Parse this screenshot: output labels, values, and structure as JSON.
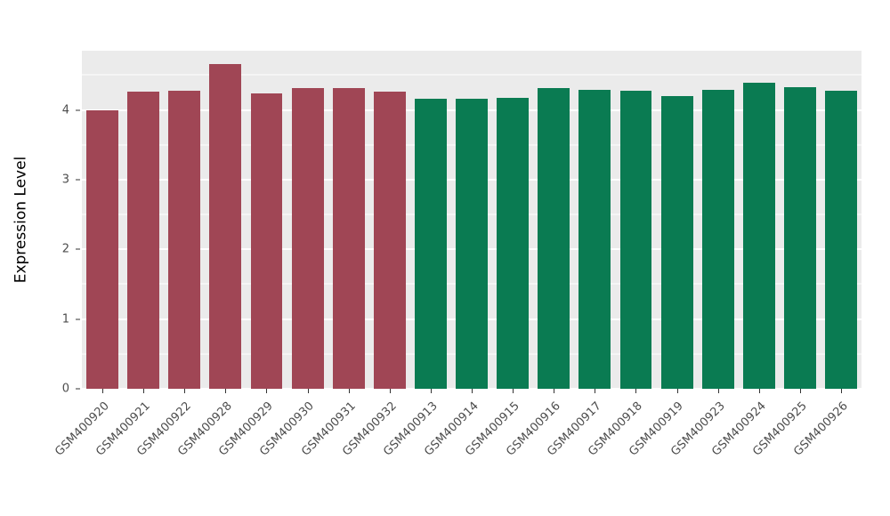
{
  "chart_data": {
    "type": "bar",
    "title": "",
    "xlabel": "",
    "ylabel": "Expression Level",
    "ylim": [
      0,
      4.85
    ],
    "yticks": [
      0,
      1,
      2,
      3,
      4
    ],
    "yticks_minor": [
      0.5,
      1.5,
      2.5,
      3.5,
      4.5
    ],
    "grid": true,
    "legend": "none",
    "panel_bg": "#ebebeb",
    "grid_color": "#ffffff",
    "groups": [
      {
        "name": "group-red",
        "color": "#a04655",
        "count": 8
      },
      {
        "name": "group-green",
        "color": "#0a7b52",
        "count": 11
      }
    ],
    "categories": [
      "GSM400920",
      "GSM400921",
      "GSM400922",
      "GSM400928",
      "GSM400929",
      "GSM400930",
      "GSM400931",
      "GSM400932",
      "GSM400913",
      "GSM400914",
      "GSM400915",
      "GSM400916",
      "GSM400917",
      "GSM400918",
      "GSM400919",
      "GSM400923",
      "GSM400924",
      "GSM400925",
      "GSM400926"
    ],
    "values": [
      4.0,
      4.26,
      4.27,
      4.66,
      4.24,
      4.31,
      4.32,
      4.26,
      4.16,
      4.16,
      4.17,
      4.31,
      4.29,
      4.28,
      4.2,
      4.29,
      4.39,
      4.33,
      4.28
    ],
    "bar_colors": [
      "#a04655",
      "#a04655",
      "#a04655",
      "#a04655",
      "#a04655",
      "#a04655",
      "#a04655",
      "#a04655",
      "#0a7b52",
      "#0a7b52",
      "#0a7b52",
      "#0a7b52",
      "#0a7b52",
      "#0a7b52",
      "#0a7b52",
      "#0a7b52",
      "#0a7b52",
      "#0a7b52",
      "#0a7b52"
    ]
  }
}
